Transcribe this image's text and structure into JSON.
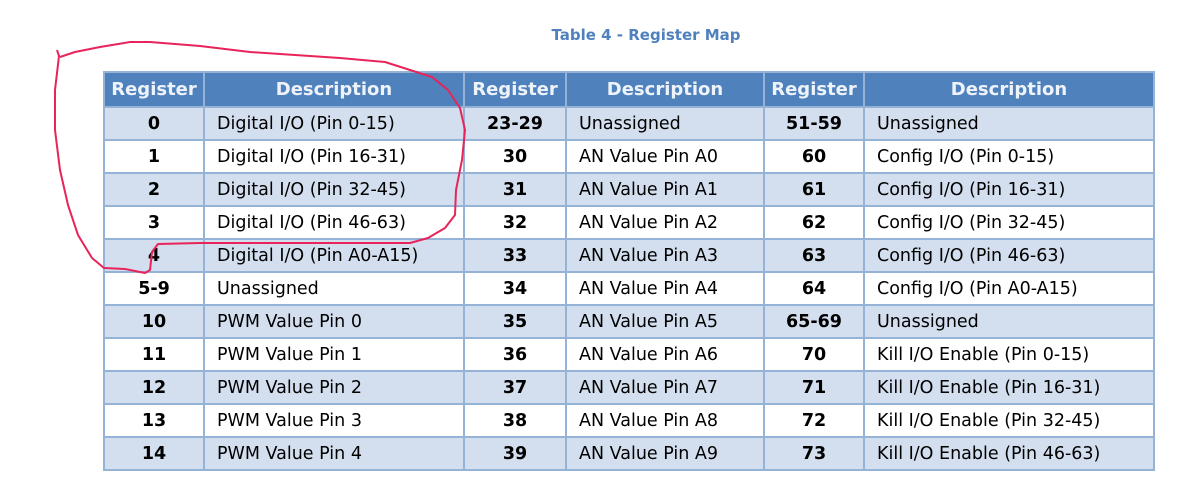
{
  "title": "Table 4 - Register Map",
  "headers": [
    "Register",
    "Description",
    "Register",
    "Description",
    "Register",
    "Description"
  ],
  "rows": [
    [
      "0",
      "Digital I/O (Pin 0-15)",
      "23-29",
      "Unassigned",
      "51-59",
      "Unassigned"
    ],
    [
      "1",
      "Digital I/O (Pin 16-31)",
      "30",
      "AN Value Pin A0",
      "60",
      "Config I/O (Pin 0-15)"
    ],
    [
      "2",
      "Digital I/O (Pin 32-45)",
      "31",
      "AN Value Pin A1",
      "61",
      "Config I/O (Pin 16-31)"
    ],
    [
      "3",
      "Digital I/O (Pin 46-63)",
      "32",
      "AN Value Pin A2",
      "62",
      "Config I/O (Pin 32-45)"
    ],
    [
      "4",
      "Digital I/O (Pin A0-A15)",
      "33",
      "AN Value Pin A3",
      "63",
      "Config I/O (Pin 46-63)"
    ],
    [
      "5-9",
      "Unassigned",
      "34",
      "AN Value Pin A4",
      "64",
      "Config I/O (Pin A0-A15)"
    ],
    [
      "10",
      "PWM Value Pin 0",
      "35",
      "AN Value Pin A5",
      "65-69",
      "Unassigned"
    ],
    [
      "11",
      "PWM Value Pin 1",
      "36",
      "AN Value Pin A6",
      "70",
      "Kill I/O Enable (Pin 0-15)"
    ],
    [
      "12",
      "PWM Value Pin 2",
      "37",
      "AN Value Pin A7",
      "71",
      "Kill I/O Enable (Pin 16-31)"
    ],
    [
      "13",
      "PWM Value Pin 3",
      "38",
      "AN Value Pin A8",
      "72",
      "Kill I/O Enable (Pin 32-45)"
    ],
    [
      "14",
      "PWM Value Pin 4",
      "39",
      "AN Value Pin A9",
      "73",
      "Kill I/O Enable (Pin 46-63)"
    ]
  ],
  "colors": {
    "header_bg": "#4f81bd",
    "band": "#d3dfee",
    "border": "#95b3d7",
    "title": "#4f81bd",
    "annotation": "#e8245a"
  }
}
